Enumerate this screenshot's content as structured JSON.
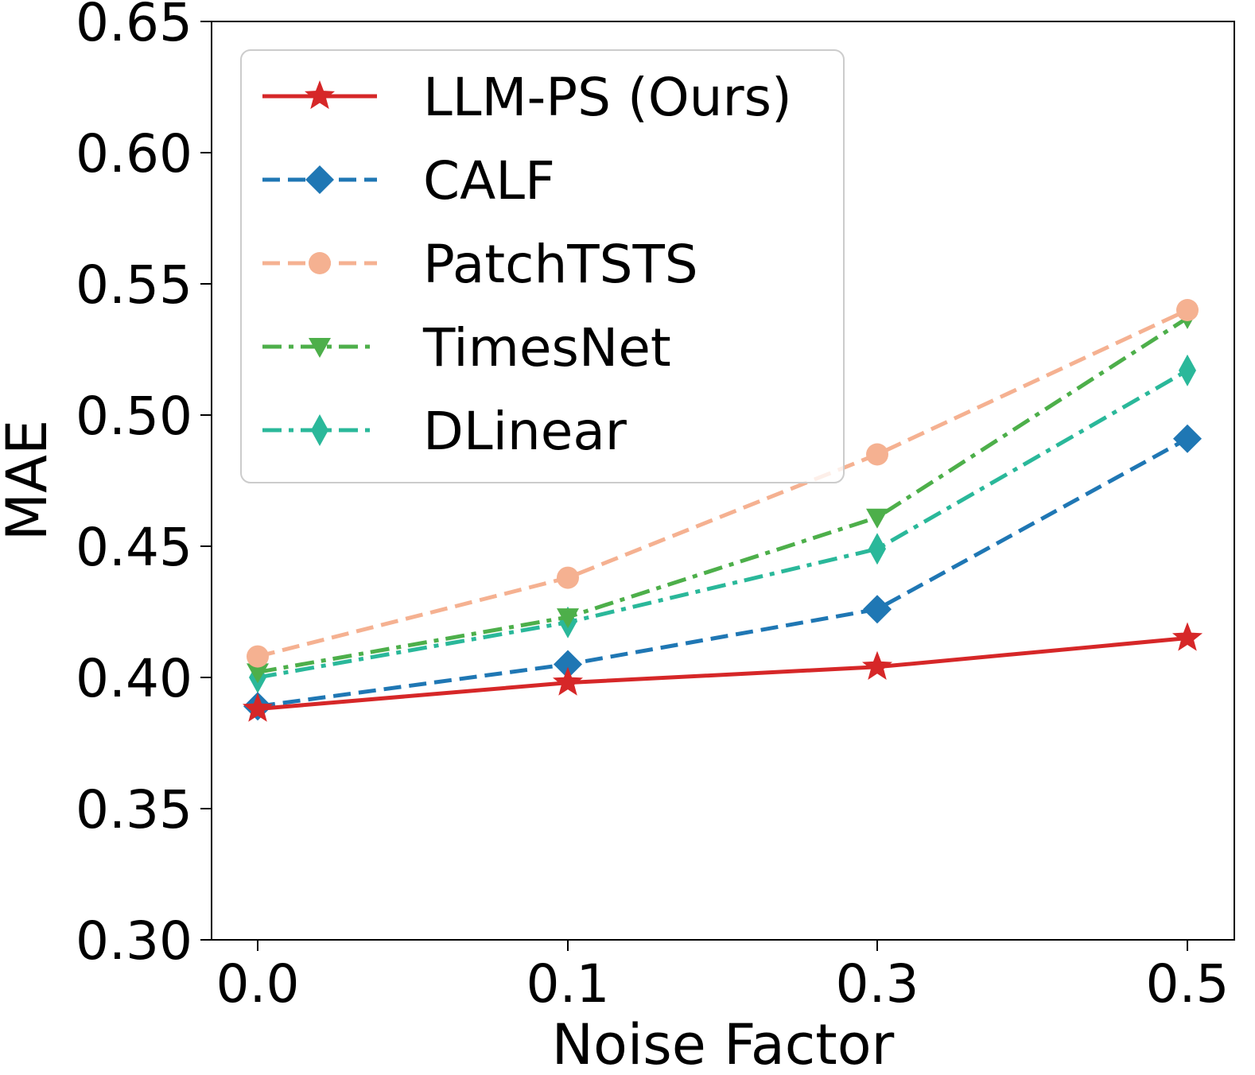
{
  "chart_data": {
    "type": "line",
    "title": "",
    "xlabel": "Noise Factor",
    "ylabel": "MAE",
    "categories": [
      "0.0",
      "0.1",
      "0.3",
      "0.5"
    ],
    "ylim": [
      0.3,
      0.65
    ],
    "yticks": [
      "0.30",
      "0.35",
      "0.40",
      "0.45",
      "0.50",
      "0.55",
      "0.60",
      "0.65"
    ],
    "grid": false,
    "legend_position": "top-left",
    "series": [
      {
        "name": "LLM-PS (Ours)",
        "values": [
          0.388,
          0.398,
          0.404,
          0.415
        ],
        "color": "#d62728",
        "dash": "solid",
        "marker": "star"
      },
      {
        "name": "CALF",
        "values": [
          0.389,
          0.405,
          0.426,
          0.491
        ],
        "color": "#1f77b4",
        "dash": "dashed",
        "marker": "diamond"
      },
      {
        "name": "PatchTSTS",
        "values": [
          0.408,
          0.438,
          0.485,
          0.54
        ],
        "color": "#f5b191",
        "dash": "dashed",
        "marker": "circle"
      },
      {
        "name": "TimesNet",
        "values": [
          0.402,
          0.423,
          0.461,
          0.537
        ],
        "color": "#4daf4a",
        "dash": "dashdot",
        "marker": "triangle-down"
      },
      {
        "name": "DLinear",
        "values": [
          0.4,
          0.421,
          0.449,
          0.517
        ],
        "color": "#2ab89a",
        "dash": "dashdot",
        "marker": "thin-diamond"
      }
    ]
  }
}
